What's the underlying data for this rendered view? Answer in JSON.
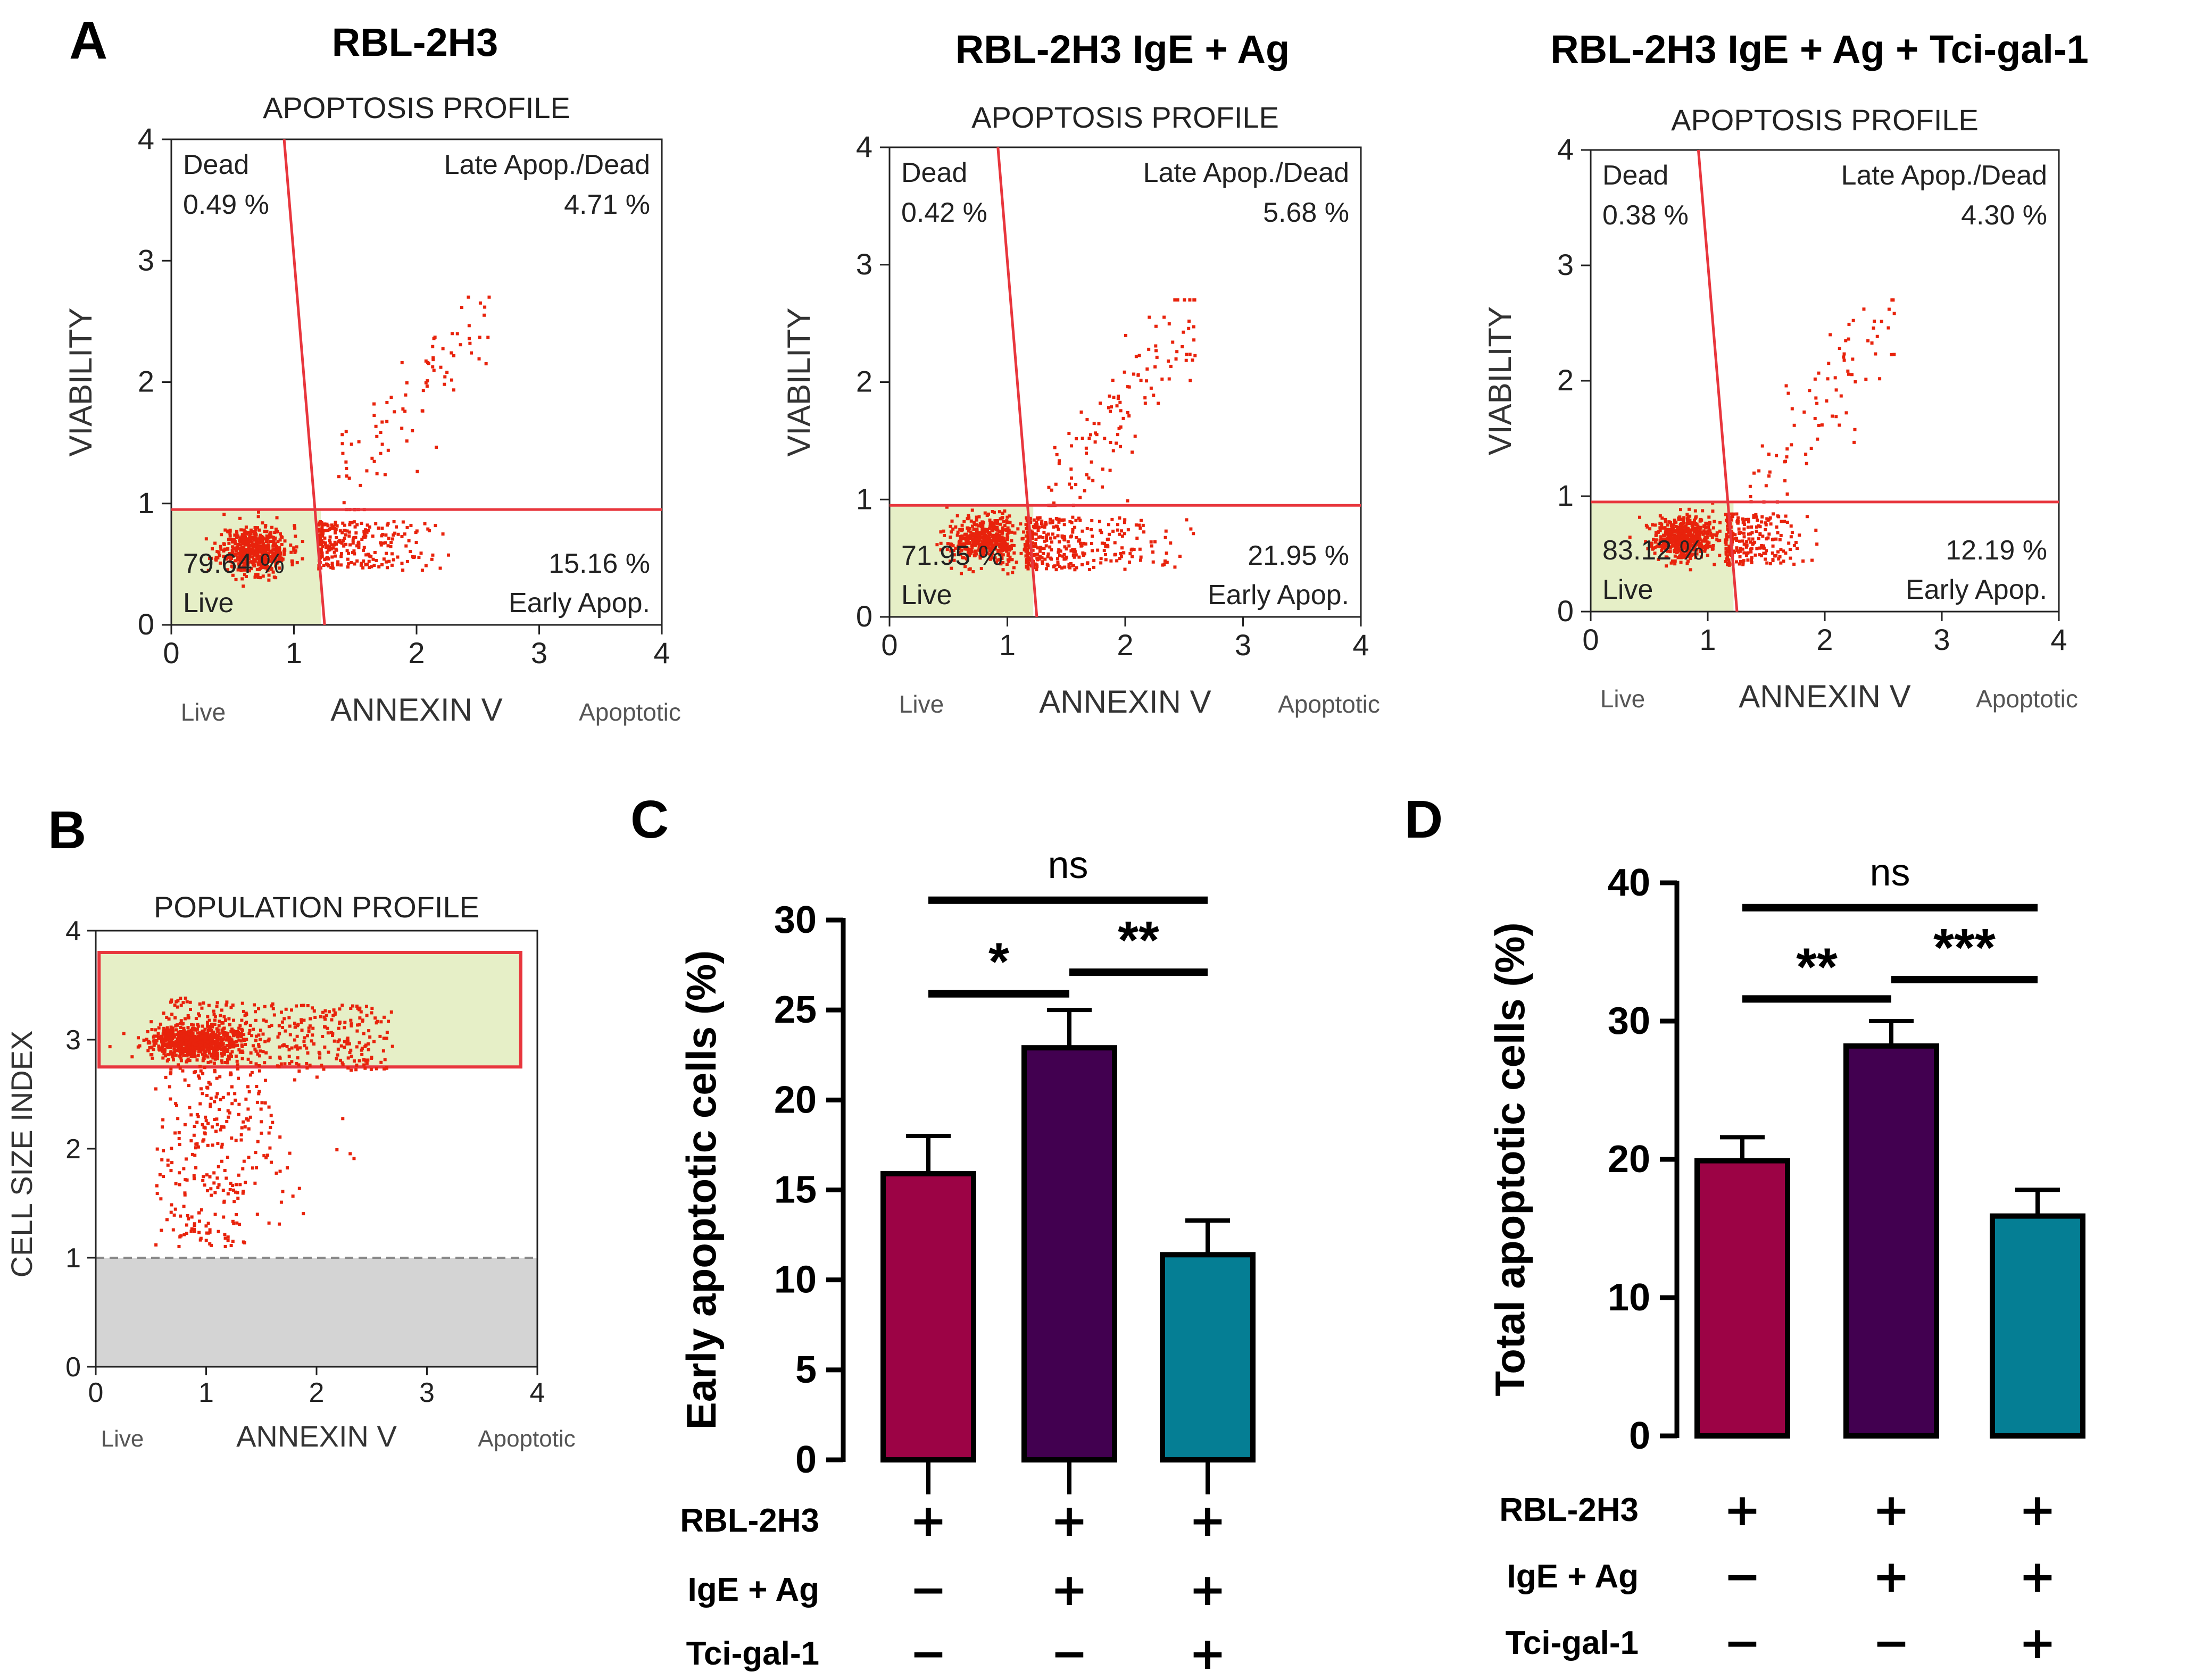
{
  "colors": {
    "gate_line": "#e8363d",
    "dot": "#e8230c",
    "live_fill": "#e6efc7",
    "gray_fill": "#d4d4d4",
    "bar_rbl": "#9c0345",
    "bar_ige": "#420050",
    "bar_tci": "#057e94"
  },
  "panels": {
    "A": {
      "letter": "A"
    },
    "B": {
      "letter": "B"
    },
    "C": {
      "letter": "C"
    },
    "D": {
      "letter": "D"
    }
  },
  "flow_plots": [
    {
      "title": "RBL-2H3",
      "subtitle": "APOPTOSIS PROFILE",
      "ylabel": "VIABILITY",
      "xlabel": "ANNEXIN V",
      "x_left_note": "Live",
      "x_right_note": "Apoptotic",
      "ticks": [
        "0",
        "1",
        "2",
        "3",
        "4"
      ],
      "q_dead_label": "Dead",
      "q_dead_pct": "0.49 %",
      "q_late_label": "Late Apop./Dead",
      "q_late_pct": "4.71 %",
      "q_live_label": "Live",
      "q_live_pct": "79.64 %",
      "q_early_label": "Early Apop.",
      "q_early_pct": "15.16 %",
      "gate": {
        "h": 0.95,
        "x_top": 0.92,
        "x_bottom": 1.25
      }
    },
    {
      "title": "RBL-2H3 IgE + Ag",
      "subtitle": "APOPTOSIS PROFILE",
      "ylabel": "VIABILITY",
      "xlabel": "ANNEXIN V",
      "x_left_note": "Live",
      "x_right_note": "Apoptotic",
      "ticks": [
        "0",
        "1",
        "2",
        "3",
        "4"
      ],
      "q_dead_label": "Dead",
      "q_dead_pct": "0.42 %",
      "q_late_label": "Late Apop./Dead",
      "q_late_pct": "5.68 %",
      "q_live_label": "Live",
      "q_live_pct": "71.95 %",
      "q_early_label": "Early Apop.",
      "q_early_pct": "21.95 %",
      "gate": {
        "h": 0.95,
        "x_top": 0.92,
        "x_bottom": 1.25
      }
    },
    {
      "title": "RBL-2H3 IgE + Ag + Tci-gal-1",
      "subtitle": "APOPTOSIS PROFILE",
      "ylabel": "VIABILITY",
      "xlabel": "ANNEXIN V",
      "x_left_note": "Live",
      "x_right_note": "Apoptotic",
      "ticks": [
        "0",
        "1",
        "2",
        "3",
        "4"
      ],
      "q_dead_label": "Dead",
      "q_dead_pct": "0.38 %",
      "q_late_label": "Late Apop./Dead",
      "q_late_pct": "4.30 %",
      "q_live_label": "Live",
      "q_live_pct": "83.12 %",
      "q_early_label": "Early Apop.",
      "q_early_pct": "12.19 %",
      "gate": {
        "h": 0.95,
        "x_top": 0.92,
        "x_bottom": 1.25
      }
    }
  ],
  "population": {
    "subtitle": "POPULATION PROFILE",
    "ylabel": "CELL SIZE INDEX",
    "xlabel": "ANNEXIN V",
    "x_left_note": "Live",
    "x_right_note": "Apoptotic",
    "ticks": [
      "0",
      "1",
      "2",
      "3",
      "4"
    ],
    "gate": {
      "x0": 0.03,
      "x1": 3.85,
      "y0": 2.75,
      "y1": 3.8
    },
    "debris_threshold": 1.0
  },
  "conditions": {
    "row_labels": [
      "RBL-2H3",
      "IgE + Ag",
      "Tci-gal-1"
    ],
    "rows": [
      [
        "+",
        "+",
        "+"
      ],
      [
        "−",
        "+",
        "+"
      ],
      [
        "−",
        "−",
        "+"
      ]
    ]
  },
  "chart_data": [
    {
      "type": "bar",
      "panel": "C",
      "ylabel": "Early apoptotic cells (%)",
      "ylim": [
        0,
        30
      ],
      "yticks": [
        "0",
        "5",
        "10",
        "15",
        "20",
        "25",
        "30"
      ],
      "categories": [
        "RBL-2H3",
        "RBL-2H3 + IgE + Ag",
        "RBL-2H3 + IgE + Ag + Tci-gal-1"
      ],
      "values": [
        15.9,
        22.9,
        11.4
      ],
      "errors": [
        2.1,
        2.1,
        1.9
      ],
      "significance": [
        {
          "from": 1,
          "to": 2,
          "label": "*",
          "y": 25.9
        },
        {
          "from": 2,
          "to": 3,
          "label": "**",
          "y": 27.1
        },
        {
          "from": 1,
          "to": 3,
          "label": "ns",
          "y": 31.1
        }
      ]
    },
    {
      "type": "bar",
      "panel": "D",
      "ylabel": "Total apoptotic cells (%)",
      "ylim": [
        0,
        40
      ],
      "yticks": [
        "0",
        "10",
        "20",
        "30",
        "40"
      ],
      "categories": [
        "RBL-2H3",
        "RBL-2H3 + IgE + Ag",
        "RBL-2H3 + IgE + Ag + Tci-gal-1"
      ],
      "values": [
        19.9,
        28.2,
        15.9
      ],
      "errors": [
        1.7,
        1.8,
        1.9
      ],
      "significance": [
        {
          "from": 1,
          "to": 2,
          "label": "**",
          "y": 31.6
        },
        {
          "from": 2,
          "to": 3,
          "label": "***",
          "y": 33.0
        },
        {
          "from": 1,
          "to": 3,
          "label": "ns",
          "y": 38.2
        }
      ]
    }
  ]
}
